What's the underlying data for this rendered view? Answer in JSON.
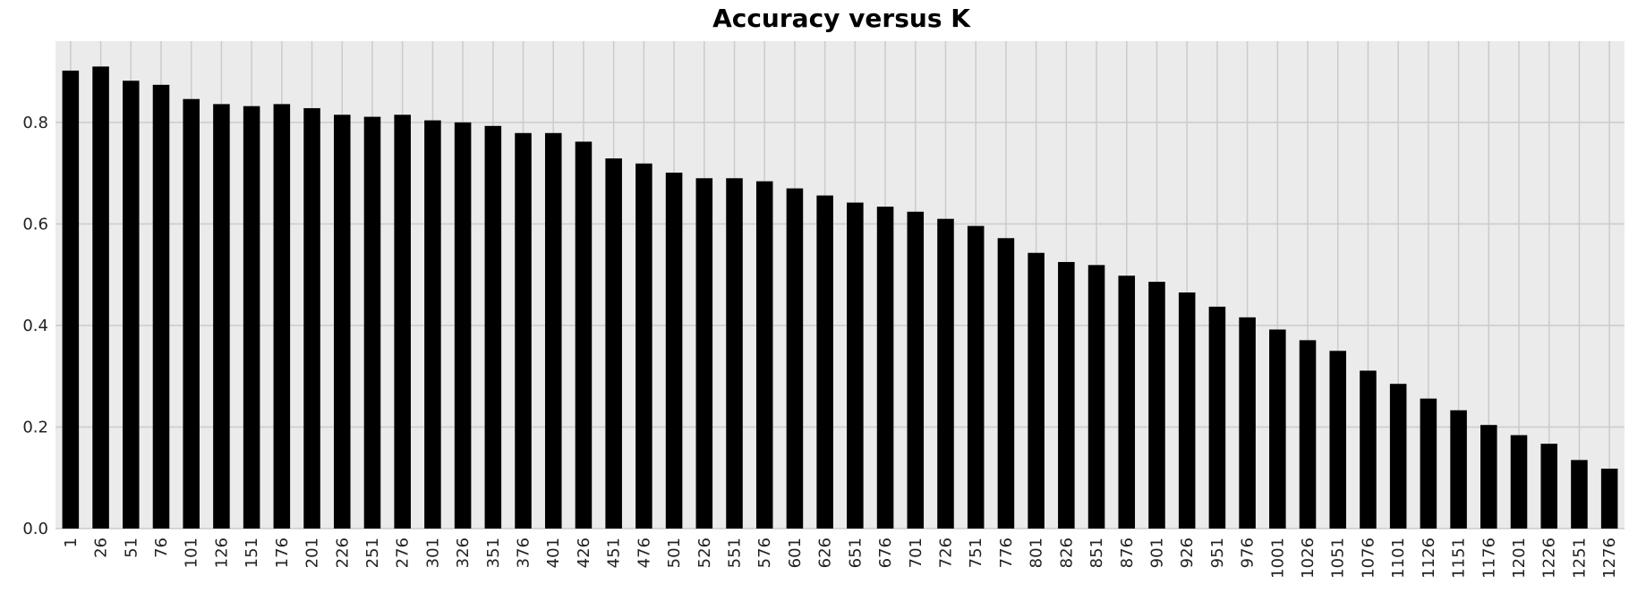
{
  "chart_data": {
    "type": "bar",
    "title": "Accuracy versus K",
    "xlabel": "",
    "ylabel": "",
    "categories": [
      "1",
      "26",
      "51",
      "76",
      "101",
      "126",
      "151",
      "176",
      "201",
      "226",
      "251",
      "276",
      "301",
      "326",
      "351",
      "376",
      "401",
      "426",
      "451",
      "476",
      "501",
      "526",
      "551",
      "576",
      "601",
      "626",
      "651",
      "676",
      "701",
      "726",
      "751",
      "776",
      "801",
      "826",
      "851",
      "876",
      "901",
      "926",
      "951",
      "976",
      "1001",
      "1026",
      "1051",
      "1076",
      "1101",
      "1126",
      "1151",
      "1176",
      "1201",
      "1226",
      "1251",
      "1276"
    ],
    "values": [
      0.902,
      0.91,
      0.882,
      0.874,
      0.846,
      0.836,
      0.832,
      0.836,
      0.828,
      0.815,
      0.811,
      0.815,
      0.804,
      0.8,
      0.793,
      0.779,
      0.779,
      0.762,
      0.729,
      0.719,
      0.701,
      0.69,
      0.69,
      0.684,
      0.67,
      0.656,
      0.642,
      0.634,
      0.624,
      0.61,
      0.596,
      0.572,
      0.543,
      0.525,
      0.519,
      0.498,
      0.486,
      0.465,
      0.437,
      0.416,
      0.392,
      0.371,
      0.35,
      0.311,
      0.285,
      0.256,
      0.233,
      0.204,
      0.184,
      0.167,
      0.135,
      0.118
    ],
    "yticks": [
      "0.0",
      "0.2",
      "0.4",
      "0.6",
      "0.8"
    ],
    "ylim": [
      0,
      0.96
    ],
    "grid": true,
    "colors": {
      "bar": "#000000",
      "plot_background": "#ebebeb",
      "grid": "#cbcbcb"
    }
  }
}
